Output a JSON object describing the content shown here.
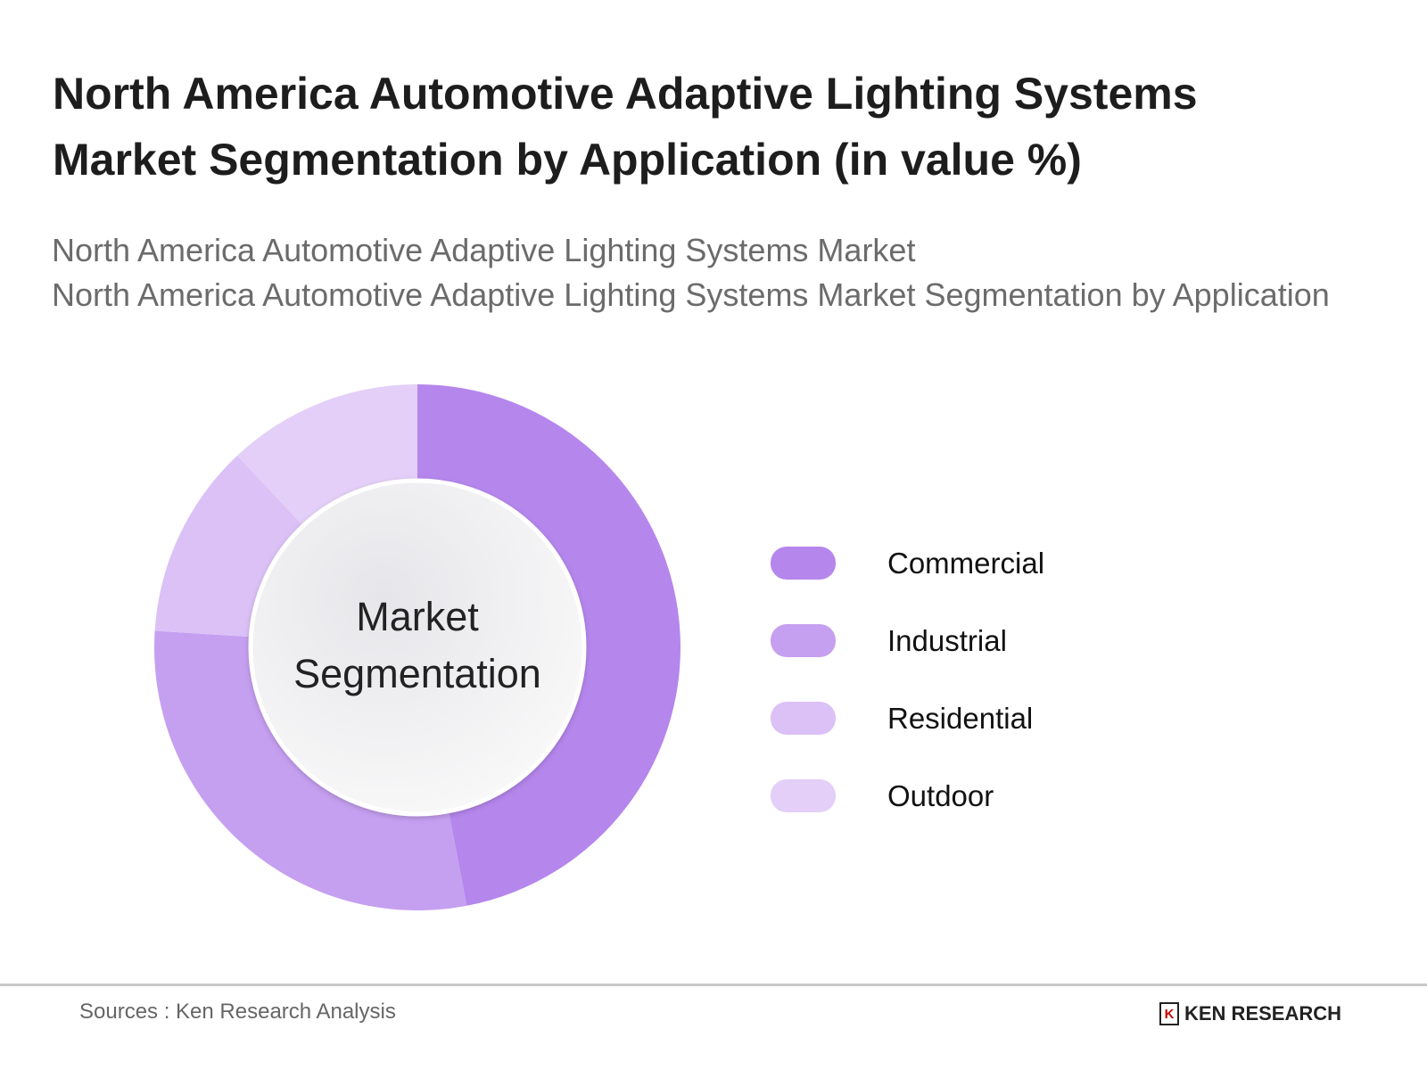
{
  "header": {
    "title": "North America Automotive Adaptive Lighting Systems Market Segmentation by Application (in value %)",
    "subtitle_line1": "North America Automotive Adaptive Lighting Systems Market",
    "subtitle_line2": "North America Automotive Adaptive Lighting Systems Market Segmentation by Application"
  },
  "chart_data": {
    "type": "pie",
    "variant": "donut",
    "center_label": "Market Segmentation",
    "legend_position": "right",
    "categories": [
      "Commercial",
      "Industrial",
      "Residential",
      "Outdoor"
    ],
    "values": [
      47,
      29,
      12,
      12
    ],
    "colors": [
      "#b586ec",
      "#c59ff0",
      "#dbc1f6",
      "#e3cff7"
    ]
  },
  "footer": {
    "source": "Sources : Ken Research Analysis",
    "logo_text": "KEN RESEARCH",
    "logo_mark": "K"
  }
}
